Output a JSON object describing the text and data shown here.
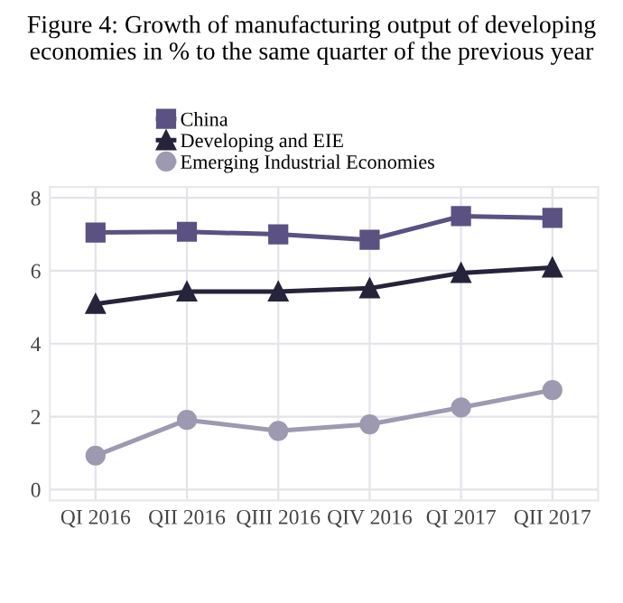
{
  "chart_data": {
    "type": "line",
    "title": "Figure 4: Growth of manufacturing output of developing economies in % to the same quarter of the previous year",
    "categories": [
      "QI 2016",
      "QII 2016",
      "QIII 2016",
      "QIV 2016",
      "QI 2017",
      "QII 2017"
    ],
    "series": [
      {
        "name": "China",
        "color": "#5b5182",
        "marker": "square",
        "values": [
          7.05,
          7.07,
          7.0,
          6.85,
          7.5,
          7.45
        ]
      },
      {
        "name": "Developing and EIE",
        "color": "#26243a",
        "marker": "triangle",
        "values": [
          5.09,
          5.43,
          5.43,
          5.52,
          5.94,
          6.09
        ]
      },
      {
        "name": "Emerging Industrial Economies",
        "color": "#9d99b0",
        "marker": "circle",
        "values": [
          0.93,
          1.91,
          1.61,
          1.79,
          2.25,
          2.73
        ]
      }
    ],
    "ylim": [
      -0.3,
      8.3
    ],
    "yticks": [
      0,
      2,
      4,
      6,
      8
    ],
    "grid": true,
    "legend": "top",
    "line_style": "solid"
  }
}
